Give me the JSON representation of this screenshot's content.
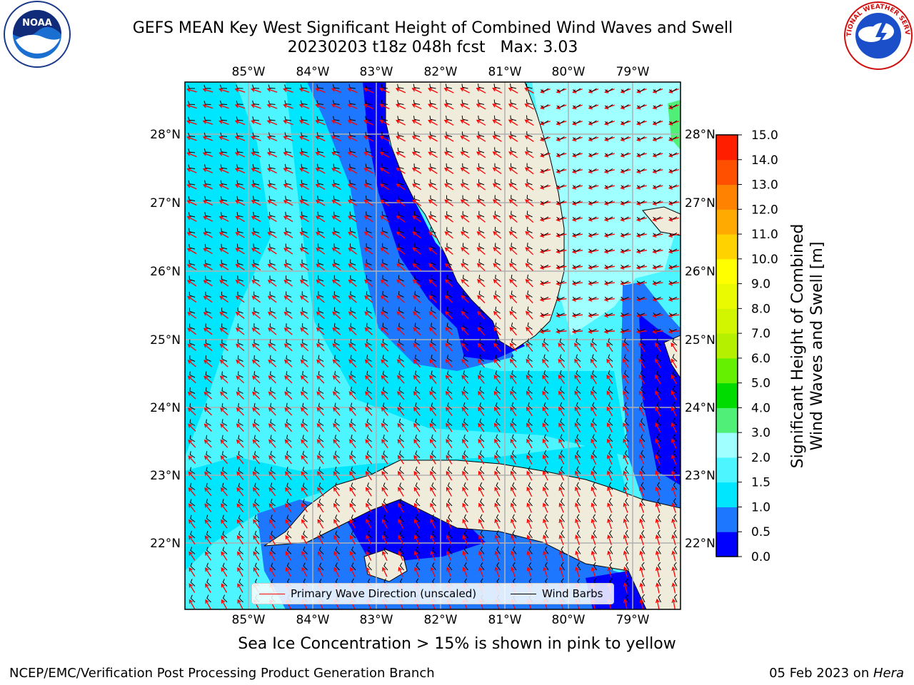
{
  "title": {
    "line1": "GEFS MEAN Key West Significant Height of Combined Wind Waves and Swell",
    "line2": "20230203 t18z 048h fcst   Max: 3.03"
  },
  "map": {
    "longitude_ticks": [
      "85°W",
      "84°W",
      "83°W",
      "82°W",
      "81°W",
      "80°W",
      "79°W"
    ],
    "latitude_ticks": [
      "28°N",
      "27°N",
      "26°N",
      "25°N",
      "24°N",
      "23°N",
      "22°N"
    ],
    "lon_range": [
      -86.0,
      -78.3
    ],
    "lat_range": [
      21.1,
      28.8
    ],
    "max_value": 3.03,
    "gridlines": true,
    "colors": {
      "land": "#efecdc",
      "coastline": "#000000",
      "wave_arrow": "#ff0000",
      "wind_barb": "#000000",
      "grid": "#b0b0b0"
    }
  },
  "colorbar": {
    "label_line1": "Significant Height of Combined",
    "label_line2": "Wind Waves and Swell [m]",
    "ticks": [
      "0.0",
      "0.5",
      "1.0",
      "1.5",
      "2.0",
      "3.0",
      "4.0",
      "5.0",
      "6.0",
      "7.0",
      "8.0",
      "9.0",
      "10.0",
      "11.0",
      "12.0",
      "13.0",
      "14.0",
      "15.0"
    ],
    "colors": [
      "#0000ff",
      "#1e78ff",
      "#00e6ff",
      "#4cf5ff",
      "#a0ffff",
      "#50f078",
      "#00dc00",
      "#64f000",
      "#b4f000",
      "#d2f500",
      "#eafa00",
      "#ffff00",
      "#ffd200",
      "#ffaa00",
      "#ff8200",
      "#ff5000",
      "#ff1e00"
    ]
  },
  "legend": {
    "wave_label": "Primary Wave Direction (unscaled)",
    "wind_label": "Wind Barbs",
    "location": "lower center"
  },
  "note": "Sea Ice Concentration > 15% is shown in pink to yellow",
  "footer": {
    "left": "NCEP/EMC/Verification Post Processing Product Generation Branch",
    "date": "05 Feb 2023 on ",
    "host": "Hera"
  },
  "logos": {
    "noaa": "NOAA",
    "nws": "NATIONAL WEATHER SERVICE"
  }
}
